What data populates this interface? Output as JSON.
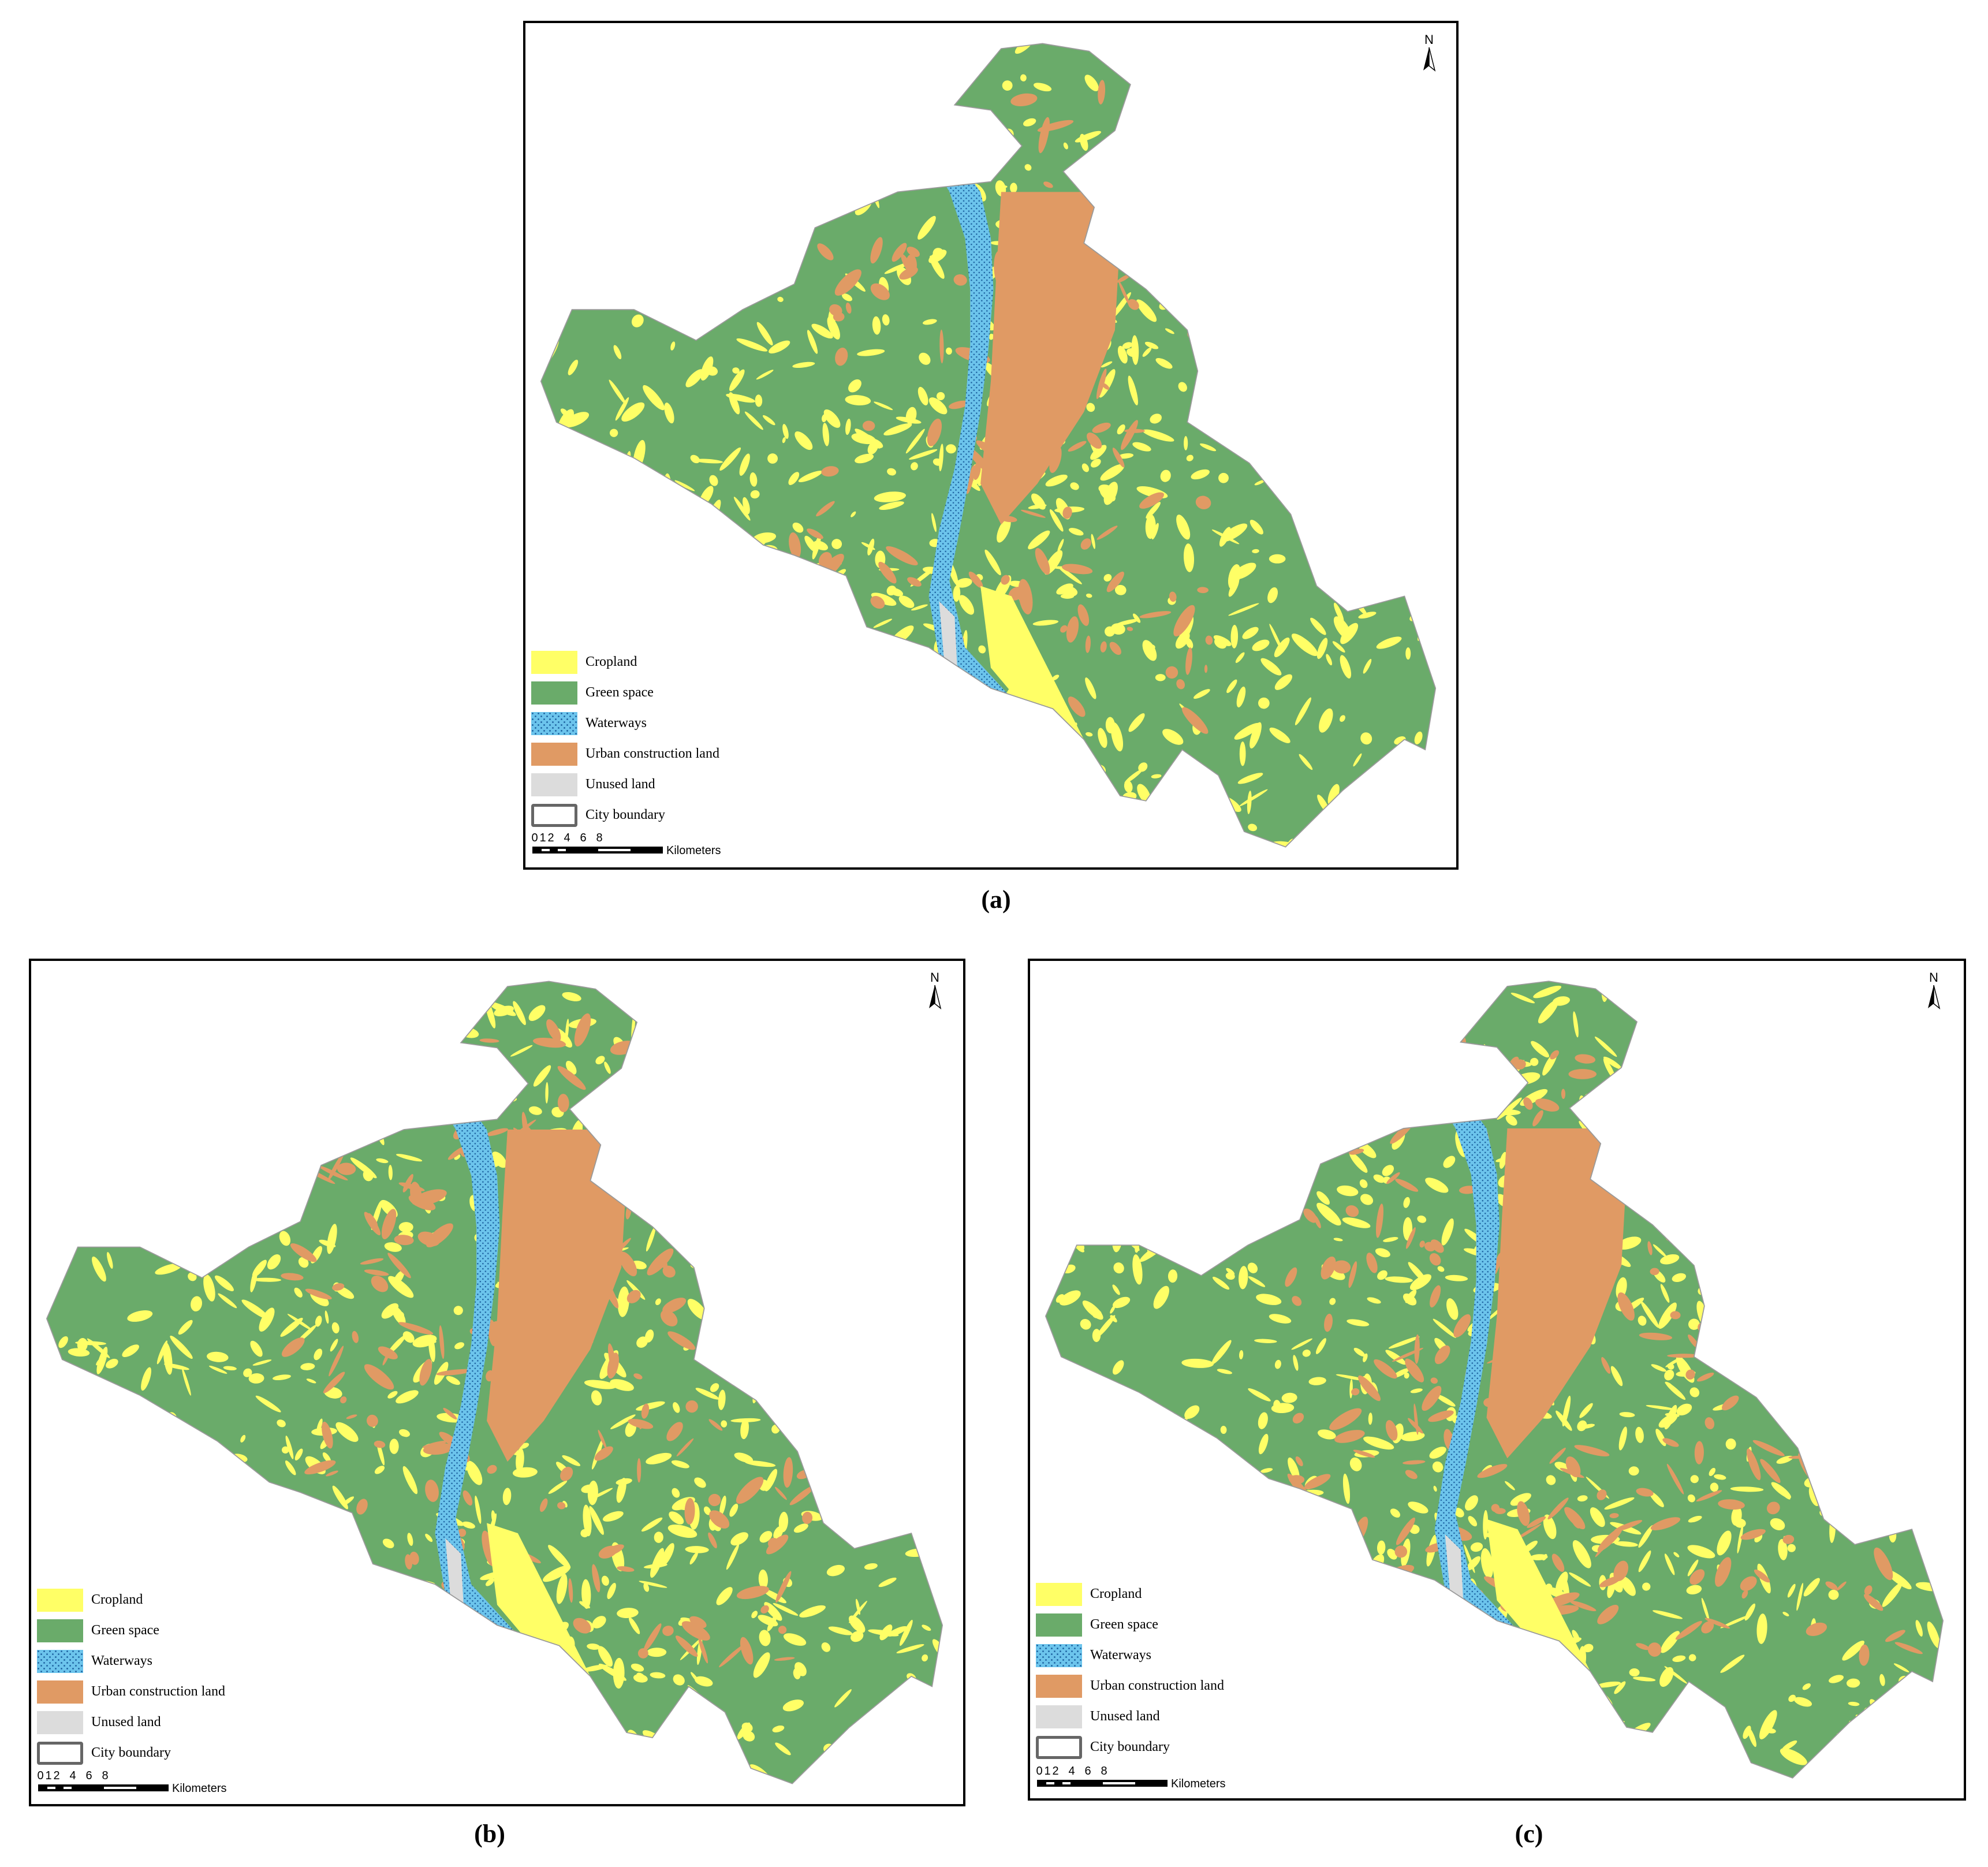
{
  "legend": {
    "cropland": "Cropland",
    "green_space": "Green space",
    "waterways": "Waterways",
    "urban": "Urban construction land",
    "unused": "Unused land",
    "boundary": "City boundary"
  },
  "north_label": "N",
  "scale": {
    "ticks": [
      "0",
      "1",
      "2",
      "4",
      "6",
      "8"
    ],
    "unit": "Kilometers"
  },
  "captions": {
    "a": "(a)",
    "b": "(b)",
    "c": "(c)"
  },
  "colors": {
    "cropland": "#ffff66",
    "green_space": "#6aab6a",
    "waterways": "#6cc4ec",
    "urban": "#e09a64",
    "unused": "#dcdcdc",
    "boundary": "#666666"
  },
  "urban_extent": {
    "a": 0.33,
    "b": 0.52,
    "c": 0.74
  }
}
